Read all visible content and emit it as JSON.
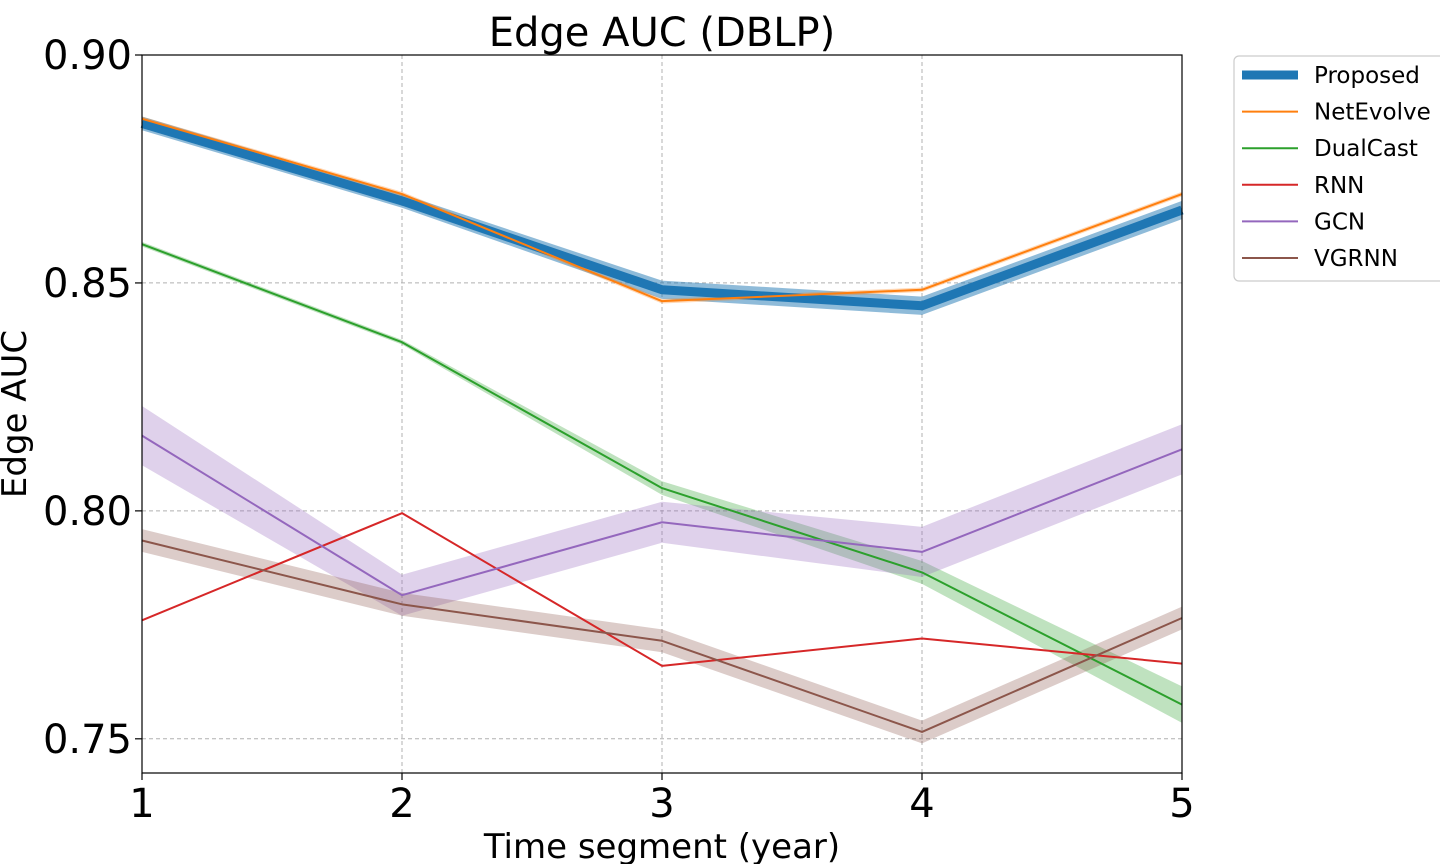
{
  "chart_data": {
    "type": "line",
    "title": "Edge AUC (DBLP)",
    "xlabel": "Time segment (year)",
    "ylabel": "Edge AUC",
    "x": [
      1,
      2,
      3,
      4,
      5
    ],
    "xticks": [
      "1",
      "2",
      "3",
      "4",
      "5"
    ],
    "yticks": [
      "0.75",
      "0.80",
      "0.85",
      "0.90"
    ],
    "ytick_values": [
      0.75,
      0.8,
      0.85,
      0.9
    ],
    "xlim": [
      1,
      5
    ],
    "ylim": [
      0.7425,
      0.9
    ],
    "grid": true,
    "legend_position": "outside-top-right",
    "series": [
      {
        "name": "Proposed",
        "color": "#1f77b4",
        "values": [
          0.885,
          0.868,
          0.8485,
          0.845,
          0.866
        ],
        "band": [
          0.0015,
          0.0015,
          0.002,
          0.002,
          0.002
        ],
        "thick": true
      },
      {
        "name": "NetEvolve",
        "color": "#ff7f0e",
        "values": [
          0.886,
          0.8695,
          0.846,
          0.8485,
          0.8695
        ],
        "band": [
          0.0005,
          0.0005,
          0.0005,
          0.0005,
          0.0005
        ]
      },
      {
        "name": "DualCast",
        "color": "#2ca02c",
        "values": [
          0.8585,
          0.837,
          0.805,
          0.7865,
          0.7575
        ],
        "band": [
          0.0005,
          0.0005,
          0.0015,
          0.0025,
          0.004
        ]
      },
      {
        "name": "RNN",
        "color": "#d62728",
        "values": [
          0.776,
          0.7995,
          0.766,
          0.772,
          0.7665
        ],
        "band": [
          0,
          0,
          0,
          0,
          0
        ]
      },
      {
        "name": "GCN",
        "color": "#9467bd",
        "values": [
          0.8165,
          0.7815,
          0.7975,
          0.791,
          0.8135
        ],
        "band": [
          0.0065,
          0.0045,
          0.0045,
          0.0055,
          0.0055
        ]
      },
      {
        "name": "VGRNN",
        "color": "#8c564b",
        "values": [
          0.7935,
          0.7795,
          0.7715,
          0.7515,
          0.7765
        ],
        "band": [
          0.0025,
          0.0025,
          0.0025,
          0.0025,
          0.0025
        ]
      }
    ]
  }
}
